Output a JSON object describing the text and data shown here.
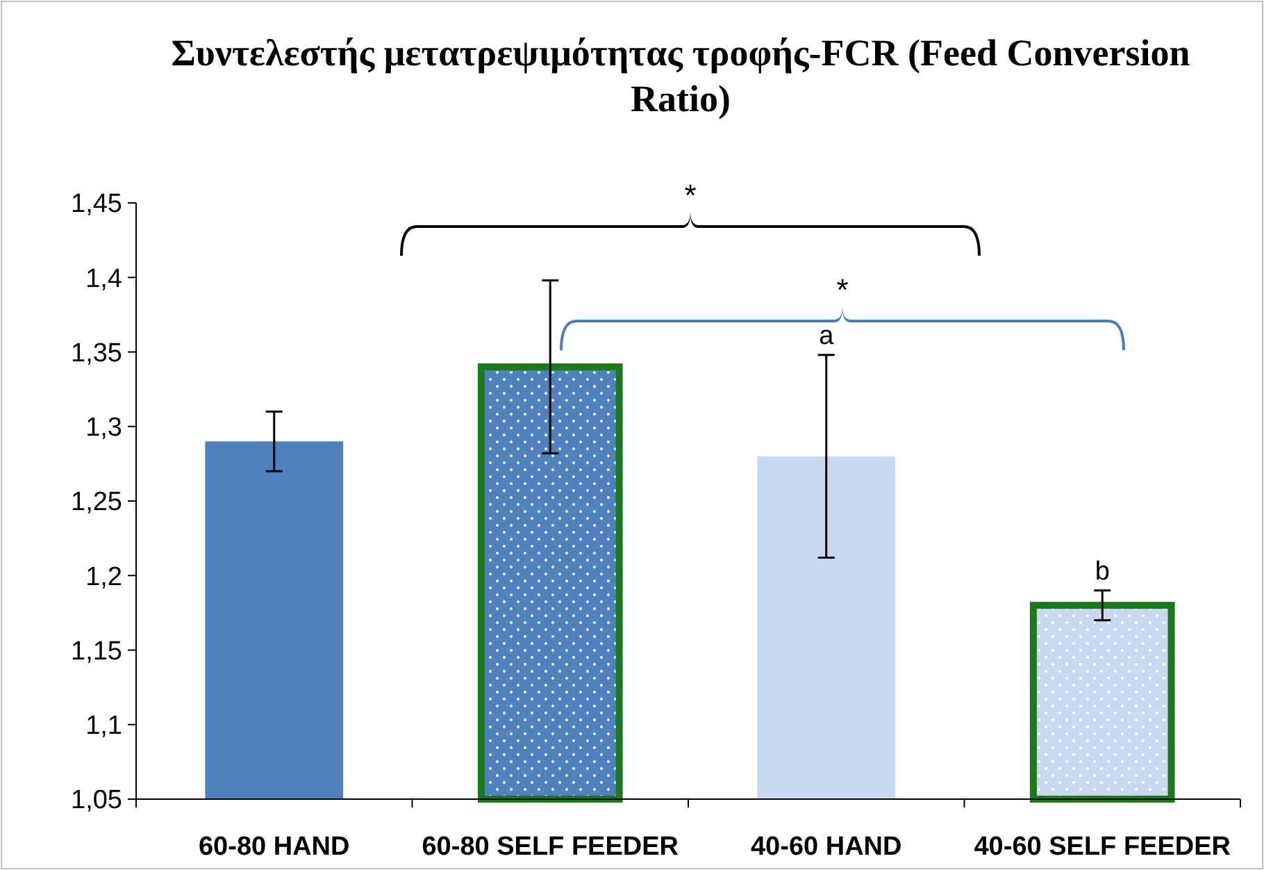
{
  "chart_data": {
    "type": "bar",
    "title": "Συντελεστής μετατρεψιμότητας τροφής-FCR (Feed Conversion Ratio)",
    "categories": [
      "60-80 HAND",
      "60-80 SELF FEEDER",
      "40-60 HAND",
      "40-60 SELF FEEDER"
    ],
    "values": [
      1.29,
      1.34,
      1.28,
      1.18
    ],
    "colors": [
      "#4f81bd",
      "#4f81bd",
      "#c6d9f1",
      "#c6d9f1"
    ],
    "errors": [
      0.02,
      0.058,
      0.068,
      0.01
    ],
    "ylim": [
      1.05,
      1.45
    ],
    "yticks": [
      {
        "value": 1.05,
        "label": "1,05"
      },
      {
        "value": 1.1,
        "label": "1,1"
      },
      {
        "value": 1.15,
        "label": "1,15"
      },
      {
        "value": 1.2,
        "label": "1,2"
      },
      {
        "value": 1.25,
        "label": "1,25"
      },
      {
        "value": 1.3,
        "label": "1,3"
      },
      {
        "value": 1.35,
        "label": "1,35"
      },
      {
        "value": 1.4,
        "label": "1,4"
      },
      {
        "value": 1.45,
        "label": "1,45"
      }
    ],
    "annotations": [
      "*",
      "*",
      "a",
      "b"
    ]
  }
}
